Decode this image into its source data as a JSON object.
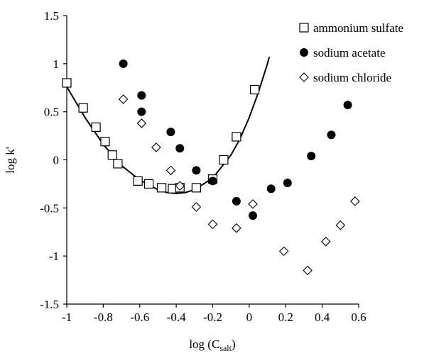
{
  "chart_data": {
    "type": "scatter",
    "xlabel_main": "log (C",
    "xlabel_sub": "salt",
    "xlabel_close": ")",
    "ylabel": "log k'",
    "xlim": [
      -1,
      0.6
    ],
    "ylim": [
      -1.5,
      1.5
    ],
    "x_ticks": [
      {
        "value": -1,
        "label": "-1"
      },
      {
        "value": -0.8,
        "label": "-0.8"
      },
      {
        "value": -0.6,
        "label": "-0.6"
      },
      {
        "value": -0.4,
        "label": "-0.4"
      },
      {
        "value": -0.2,
        "label": "-0.2"
      },
      {
        "value": 0,
        "label": "0"
      },
      {
        "value": 0.2,
        "label": "0.2"
      },
      {
        "value": 0.4,
        "label": "0.4"
      },
      {
        "value": 0.6,
        "label": "0.6"
      }
    ],
    "y_ticks": [
      {
        "value": -1.5,
        "label": "-1.5"
      },
      {
        "value": -1,
        "label": "-1"
      },
      {
        "value": -0.5,
        "label": "-0.5"
      },
      {
        "value": 0,
        "label": "0"
      },
      {
        "value": 0.5,
        "label": "0.5"
      },
      {
        "value": 1,
        "label": "1"
      },
      {
        "value": 1.5,
        "label": "1.5"
      }
    ],
    "grid": false,
    "legend_position": "top-right",
    "series": [
      {
        "name": "ammonium sulfate",
        "marker": "open-square",
        "color": "#000000",
        "points": [
          [
            -1.0,
            0.8
          ],
          [
            -0.91,
            0.54
          ],
          [
            -0.84,
            0.34
          ],
          [
            -0.79,
            0.19
          ],
          [
            -0.75,
            0.05
          ],
          [
            -0.72,
            -0.04
          ],
          [
            -0.61,
            -0.22
          ],
          [
            -0.55,
            -0.25
          ],
          [
            -0.48,
            -0.29
          ],
          [
            -0.42,
            -0.3
          ],
          [
            -0.38,
            -0.29
          ],
          [
            -0.29,
            -0.29
          ],
          [
            -0.2,
            -0.2
          ],
          [
            -0.14,
            0.0
          ],
          [
            -0.07,
            0.24
          ],
          [
            0.03,
            0.73
          ]
        ]
      },
      {
        "name": "sodium acetate",
        "marker": "filled-circle",
        "color": "#000000",
        "points": [
          [
            -0.69,
            1.0
          ],
          [
            -0.59,
            0.67
          ],
          [
            -0.59,
            0.5
          ],
          [
            -0.43,
            0.29
          ],
          [
            -0.38,
            0.12
          ],
          [
            -0.29,
            -0.11
          ],
          [
            -0.2,
            -0.22
          ],
          [
            -0.07,
            -0.43
          ],
          [
            0.02,
            -0.58
          ],
          [
            0.12,
            -0.3
          ],
          [
            0.21,
            -0.24
          ],
          [
            0.34,
            0.04
          ],
          [
            0.45,
            0.26
          ],
          [
            0.54,
            0.57
          ]
        ]
      },
      {
        "name": "sodium chloride",
        "marker": "open-diamond",
        "color": "#000000",
        "points": [
          [
            -0.69,
            0.63
          ],
          [
            -0.59,
            0.38
          ],
          [
            -0.51,
            0.13
          ],
          [
            -0.43,
            -0.11
          ],
          [
            -0.38,
            -0.27
          ],
          [
            -0.29,
            -0.49
          ],
          [
            -0.2,
            -0.67
          ],
          [
            -0.07,
            -0.71
          ],
          [
            0.02,
            -0.46
          ],
          [
            0.19,
            -0.95
          ],
          [
            0.32,
            -1.15
          ],
          [
            0.42,
            -0.85
          ],
          [
            0.5,
            -0.68
          ],
          [
            0.58,
            -0.43
          ]
        ]
      }
    ],
    "fit_curve": {
      "color": "#000000",
      "points": [
        [
          -1.0,
          0.76
        ],
        [
          -0.9,
          0.44
        ],
        [
          -0.8,
          0.16
        ],
        [
          -0.7,
          -0.06
        ],
        [
          -0.6,
          -0.21
        ],
        [
          -0.5,
          -0.31
        ],
        [
          -0.45,
          -0.34
        ],
        [
          -0.4,
          -0.35
        ],
        [
          -0.35,
          -0.34
        ],
        [
          -0.3,
          -0.31
        ],
        [
          -0.2,
          -0.19
        ],
        [
          -0.1,
          0.05
        ],
        [
          -0.05,
          0.22
        ],
        [
          0.0,
          0.44
        ],
        [
          0.05,
          0.7
        ],
        [
          0.1,
          1.0
        ],
        [
          0.11,
          1.07
        ]
      ]
    }
  }
}
